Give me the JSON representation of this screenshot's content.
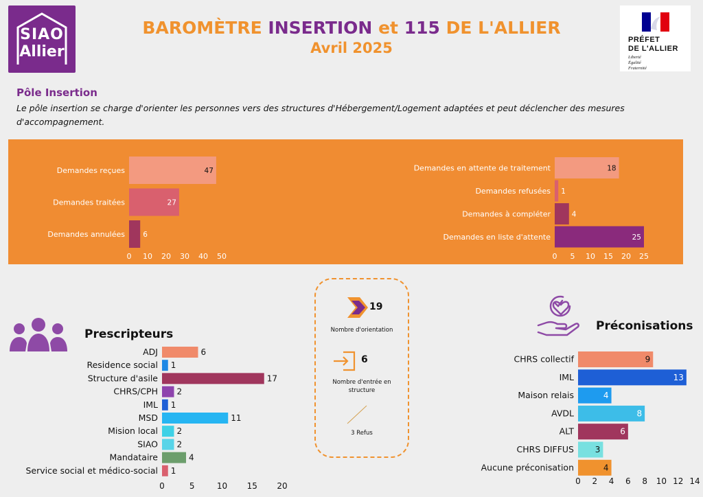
{
  "header": {
    "title_part1": "BAROMÈTRE",
    "title_part2": "INSERTION",
    "title_part3": "et",
    "title_part4": "115",
    "title_part5": "DE L'ALLIER",
    "subtitle": "Avril 2025",
    "logo_siao_line1": "SIAO",
    "logo_siao_line2": "Allier",
    "logo_prefet_line1": "PRÉFET",
    "logo_prefet_line2": "DE L'ALLIER",
    "logo_prefet_motto": [
      "Liberté",
      "Égalité",
      "Fraternité"
    ]
  },
  "pole": {
    "title": "Pôle Insertion",
    "description": "Le pôle insertion se charge d'orienter les personnes vers des structures d'Hébergement/Logement adaptées et peut déclencher des mesures d'accompagnement."
  },
  "orientation": {
    "nombre_orientation_value": "19",
    "nombre_orientation_label": "Nombre d'orientation",
    "nombre_entree_value": "6",
    "nombre_entree_label": "Nombre d'entrée en structure",
    "refus_label": "3 Refus"
  },
  "colors": {
    "orange": "#f0922e",
    "purple": "#7a2b8c"
  },
  "chart_data": [
    {
      "id": "demandes-left",
      "type": "bar",
      "orientation": "horizontal",
      "categories": [
        "Demandes reçues",
        "Demandes traitées",
        "Demandes annulées"
      ],
      "values": [
        47,
        27,
        6
      ],
      "colors": [
        "#f39a80",
        "#d9606e",
        "#a0365d"
      ],
      "xticks": [
        "0",
        "10",
        "20",
        "30",
        "40",
        "50"
      ],
      "xlim": [
        0,
        50
      ]
    },
    {
      "id": "demandes-right",
      "type": "bar",
      "orientation": "horizontal",
      "categories": [
        "Demandes en attente de traitement",
        "Demandes refusées",
        "Demandes à compléter",
        "Demandes en liste d'attente"
      ],
      "values": [
        18,
        1,
        4,
        25
      ],
      "colors": [
        "#f39a80",
        "#d9606e",
        "#a0365d",
        "#8a2a7c"
      ],
      "xticks": [
        "0",
        "5",
        "10",
        "15",
        "20",
        "25"
      ],
      "xlim": [
        0,
        25
      ]
    },
    {
      "id": "prescripteurs",
      "type": "bar",
      "orientation": "horizontal",
      "title": "Prescripteurs",
      "categories": [
        "ADJ",
        "Residence social",
        "Structure d'asile",
        "CHRS/CPH",
        "IML",
        "MSD",
        "Mision local",
        "SIAO",
        "Mandataire",
        "Service social et médico-social"
      ],
      "values": [
        6,
        1,
        17,
        2,
        1,
        11,
        2,
        2,
        4,
        1
      ],
      "colors": [
        "#f08a6a",
        "#1e88e5",
        "#a0365d",
        "#8e44ad",
        "#1e5fd6",
        "#26b5f2",
        "#3ed1e6",
        "#58d4e8",
        "#6c9e6c",
        "#d9606e"
      ],
      "xticks": [
        "0",
        "5",
        "10",
        "15",
        "20"
      ],
      "xlim": [
        0,
        20
      ]
    },
    {
      "id": "preconisations",
      "type": "bar",
      "orientation": "horizontal",
      "title": "Préconisations",
      "categories": [
        "CHRS collectif",
        "IML",
        "Maison relais",
        "AVDL",
        "ALT",
        "CHRS DIFFUS",
        "Aucune préconisation"
      ],
      "values": [
        9,
        13,
        4,
        8,
        6,
        3,
        4
      ],
      "colors": [
        "#f08a6a",
        "#1e5fd6",
        "#1e9bef",
        "#3dbde8",
        "#a0365d",
        "#78e0e0",
        "#f0922e"
      ],
      "xticks": [
        "0",
        "2",
        "4",
        "6",
        "8",
        "10",
        "12",
        "14"
      ],
      "xlim": [
        0,
        14
      ]
    }
  ]
}
